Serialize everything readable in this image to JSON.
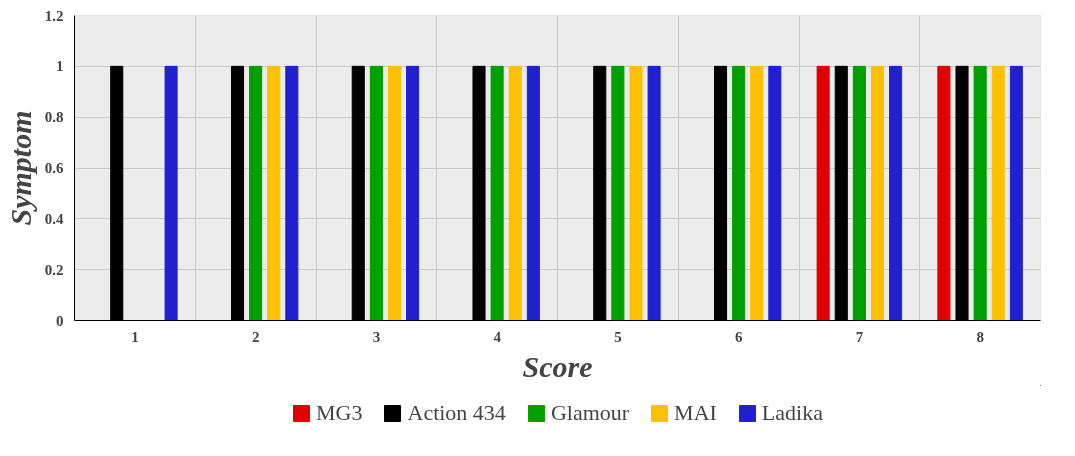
{
  "chart_data": {
    "type": "bar",
    "xlabel": "Score",
    "ylabel": "Symptom",
    "categories": [
      "1",
      "2",
      "3",
      "4",
      "5",
      "6",
      "7",
      "8"
    ],
    "series": [
      {
        "name": "MG3",
        "color": "#e00000",
        "values": [
          0,
          0,
          0,
          0,
          0,
          0,
          1,
          1
        ]
      },
      {
        "name": "Action 434",
        "color": "#000000",
        "values": [
          1,
          1,
          1,
          1,
          1,
          1,
          1,
          1
        ]
      },
      {
        "name": "Glamour",
        "color": "#00a000",
        "values": [
          0,
          1,
          1,
          1,
          1,
          1,
          1,
          1
        ]
      },
      {
        "name": "MAI",
        "color": "#ffc000",
        "values": [
          0,
          1,
          1,
          1,
          1,
          1,
          1,
          1
        ]
      },
      {
        "name": "Ladika",
        "color": "#2020d0",
        "values": [
          1,
          1,
          1,
          1,
          1,
          1,
          1,
          1
        ]
      }
    ],
    "ylim": [
      0,
      1.2
    ],
    "yticks": [
      0,
      0.2,
      0.4,
      0.6,
      0.8,
      1,
      1.2
    ],
    "grid": true,
    "legend": "bottom"
  }
}
